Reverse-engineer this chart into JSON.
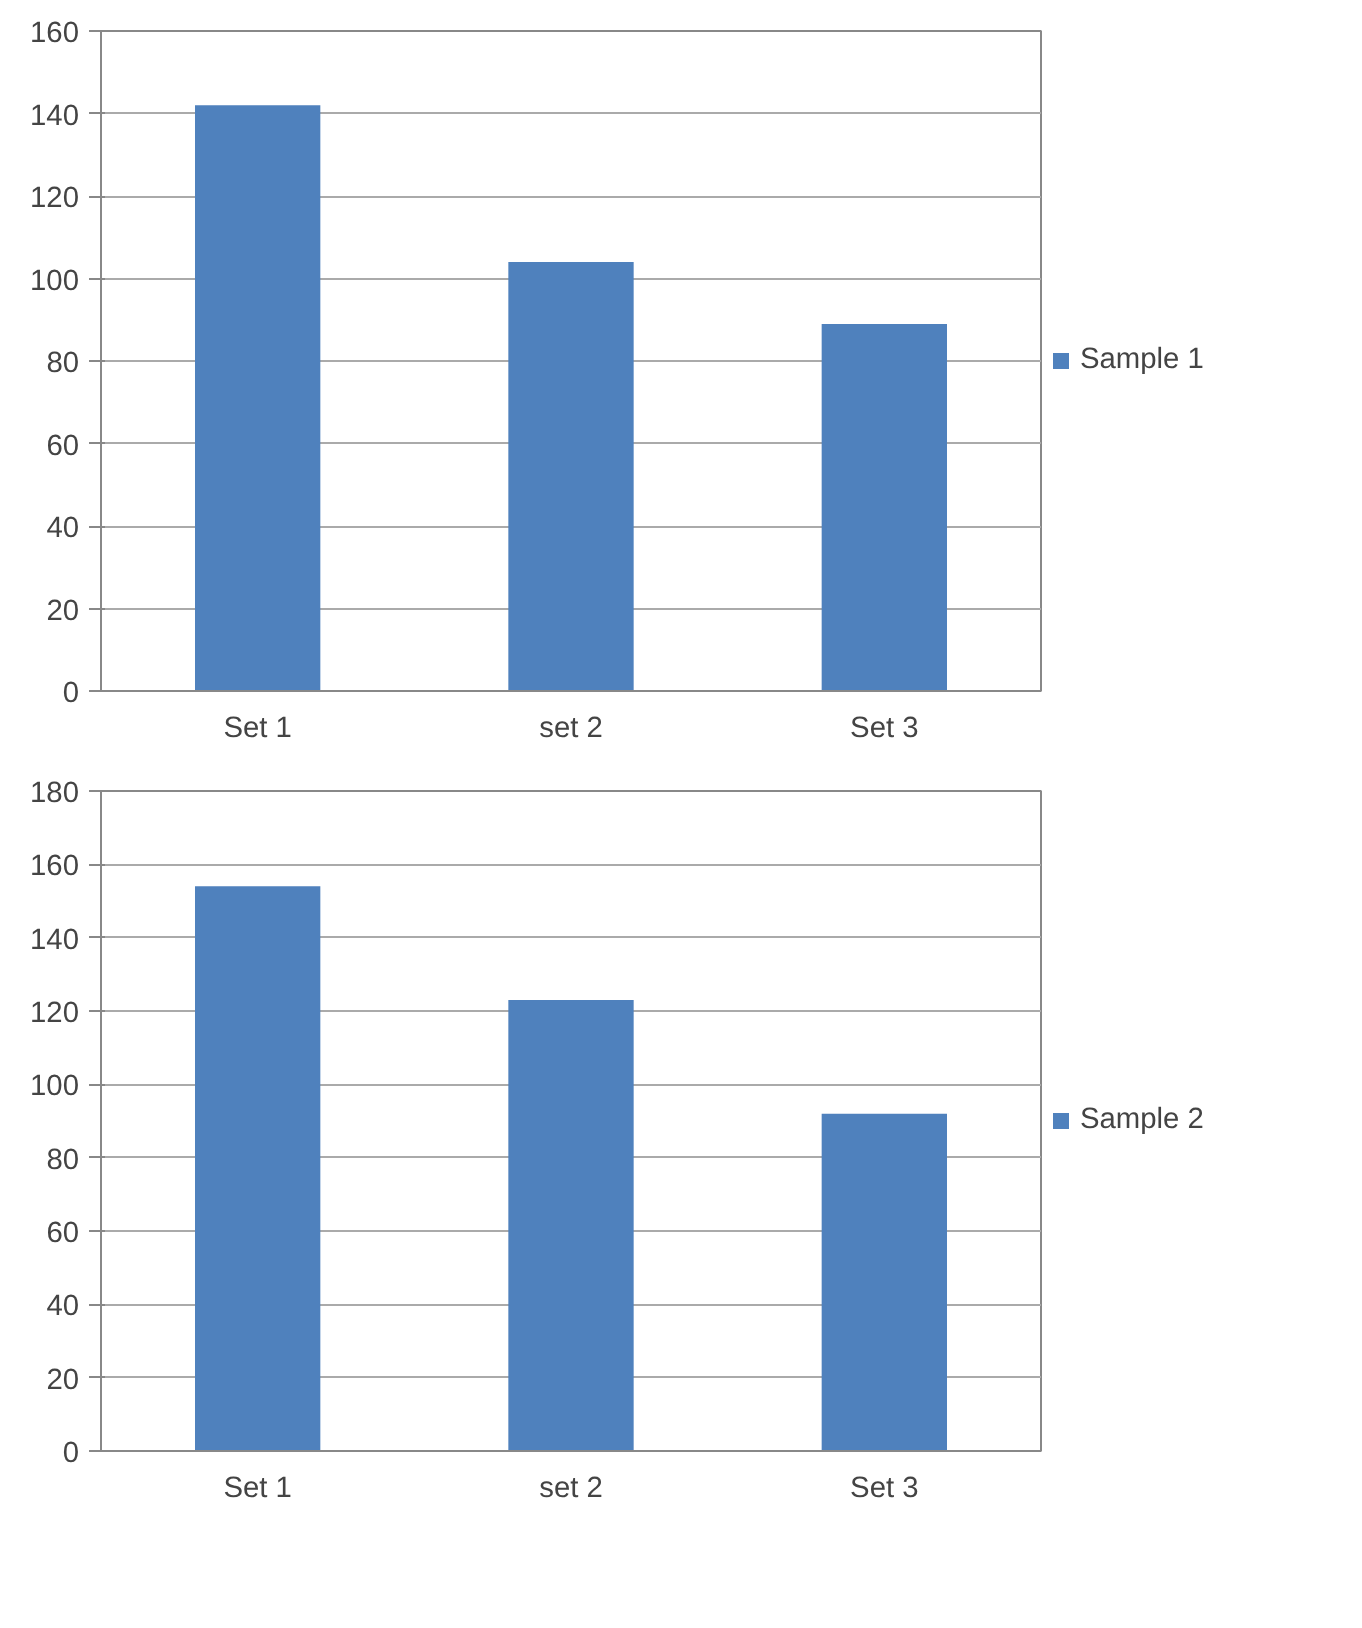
{
  "chart_data": [
    {
      "type": "bar",
      "categories": [
        "Set 1",
        "set 2",
        "Set 3"
      ],
      "series": [
        {
          "name": "Sample 1",
          "color": "#4f81bd",
          "values": [
            142,
            104,
            89
          ]
        }
      ],
      "ylim": [
        0,
        160
      ],
      "yticks": [
        0,
        20,
        40,
        60,
        80,
        100,
        120,
        140,
        160
      ],
      "grid": "y",
      "legend": "right"
    },
    {
      "type": "bar",
      "categories": [
        "Set 1",
        "set 2",
        "Set 3"
      ],
      "series": [
        {
          "name": "Sample 2",
          "color": "#4f81bd",
          "values": [
            154,
            123,
            92
          ]
        }
      ],
      "ylim": [
        0,
        180
      ],
      "yticks": [
        0,
        20,
        40,
        60,
        80,
        100,
        120,
        140,
        160,
        180
      ],
      "grid": "y",
      "legend": "right"
    }
  ]
}
